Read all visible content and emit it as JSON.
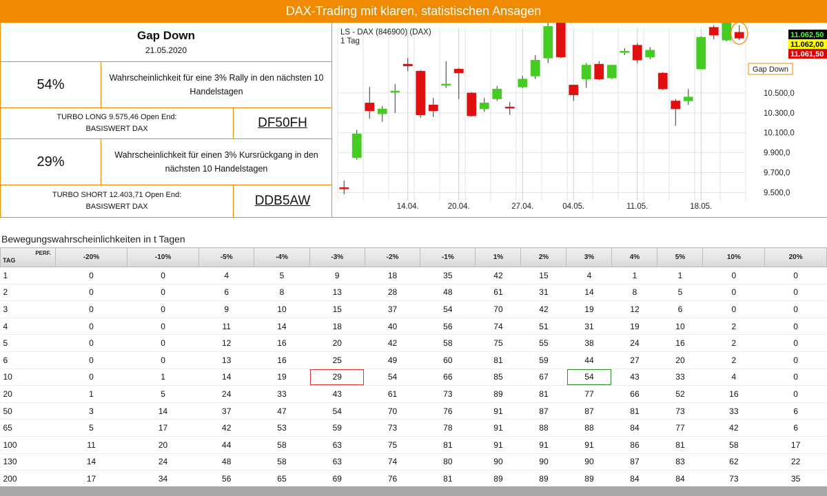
{
  "header": {
    "title": "DAX-Trading mit klaren, statistischen Ansagen"
  },
  "info": {
    "title": "Gap Down",
    "date": "21.05.2020",
    "long": {
      "pct": "54%",
      "desc": "Wahrscheinlichkeit für eine 3% Rally in den nächsten 10 Handelstagen",
      "product_line1": "TURBO LONG 9.575,46 Open End:",
      "product_line2": "BASISWERT DAX",
      "code": "DF50FH"
    },
    "short": {
      "pct": "29%",
      "desc": "Wahrscheinlichkeit für einen 3% Kursrückgang in den nächsten 10 Handelstagen",
      "product_line1": "TURBO SHORT 12.403,71 Open End:",
      "product_line2": "BASISWERT DAX",
      "code": "DDB5AW"
    }
  },
  "chart_data": {
    "type": "candlestick",
    "title": "LS - DAX (846900) (DAX)",
    "subtitle": "1 Tag",
    "y_ticks": [
      "9.500,0",
      "9.700,0",
      "9.900,0",
      "10.100,0",
      "10.300,0",
      "10.500,0"
    ],
    "x_ticks": [
      "14.04.",
      "20.04.",
      "27.04.",
      "04.05.",
      "11.05.",
      "18.05."
    ],
    "ylim": [
      9420,
      11150
    ],
    "candles": [
      {
        "o": 9550,
        "h": 9620,
        "l": 9480,
        "c": 9545
      },
      {
        "o": 9850,
        "h": 10130,
        "l": 9830,
        "c": 10090
      },
      {
        "o": 10400,
        "h": 10560,
        "l": 10240,
        "c": 10320
      },
      {
        "o": 10290,
        "h": 10370,
        "l": 10210,
        "c": 10340
      },
      {
        "o": 10510,
        "h": 10590,
        "l": 10300,
        "c": 10520
      },
      {
        "o": 10790,
        "h": 10850,
        "l": 10720,
        "c": 10770
      },
      {
        "o": 10720,
        "h": 10730,
        "l": 10250,
        "c": 10280
      },
      {
        "o": 10380,
        "h": 10450,
        "l": 10260,
        "c": 10320
      },
      {
        "o": 10590,
        "h": 10820,
        "l": 10550,
        "c": 10590
      },
      {
        "o": 10740,
        "h": 10750,
        "l": 10440,
        "c": 10700
      },
      {
        "o": 10500,
        "h": 10510,
        "l": 10260,
        "c": 10270
      },
      {
        "o": 10340,
        "h": 10450,
        "l": 10310,
        "c": 10400
      },
      {
        "o": 10440,
        "h": 10570,
        "l": 10420,
        "c": 10540
      },
      {
        "o": 10360,
        "h": 10410,
        "l": 10280,
        "c": 10350
      },
      {
        "o": 10560,
        "h": 10670,
        "l": 10550,
        "c": 10640
      },
      {
        "o": 10670,
        "h": 10880,
        "l": 10640,
        "c": 10830
      },
      {
        "o": 10850,
        "h": 11210,
        "l": 10800,
        "c": 11170
      },
      {
        "o": 11210,
        "h": 11240,
        "l": 10850,
        "c": 10860
      },
      {
        "o": 10580,
        "h": 10580,
        "l": 10420,
        "c": 10480
      },
      {
        "o": 10640,
        "h": 10800,
        "l": 10550,
        "c": 10780
      },
      {
        "o": 10790,
        "h": 10820,
        "l": 10630,
        "c": 10640
      },
      {
        "o": 10650,
        "h": 10780,
        "l": 10640,
        "c": 10780
      },
      {
        "o": 10910,
        "h": 10950,
        "l": 10880,
        "c": 10920
      },
      {
        "o": 10980,
        "h": 11000,
        "l": 10800,
        "c": 10830
      },
      {
        "o": 10860,
        "h": 10960,
        "l": 10840,
        "c": 10930
      },
      {
        "o": 10700,
        "h": 10710,
        "l": 10530,
        "c": 10540
      },
      {
        "o": 10420,
        "h": 10440,
        "l": 10170,
        "c": 10340
      },
      {
        "o": 10420,
        "h": 10540,
        "l": 10380,
        "c": 10460
      },
      {
        "o": 10740,
        "h": 11070,
        "l": 10740,
        "c": 11060
      },
      {
        "o": 11160,
        "h": 11180,
        "l": 11040,
        "c": 11080
      },
      {
        "o": 11030,
        "h": 11210,
        "l": 11020,
        "c": 11210
      },
      {
        "o": 11110,
        "h": 11180,
        "l": 11030,
        "c": 11050
      }
    ],
    "price_labels": [
      {
        "text": "11.062,50",
        "kind": "last",
        "bg": "#000000",
        "color": "#44ff44"
      },
      {
        "text": "11.062,00",
        "kind": "bid",
        "bg": "#ffff00",
        "color": "#000000"
      },
      {
        "text": "11.061,50",
        "kind": "ask",
        "bg": "#e00000",
        "color": "#ffffff"
      }
    ],
    "annotation": "Gap Down",
    "colors": {
      "up": "#44cc22",
      "down": "#e01010",
      "annotation": "#f08a00",
      "grid": "#e2e2e2"
    }
  },
  "table": {
    "title": "Bewegungswahrscheinlichkeiten in t Tagen",
    "corner_top": "PERF.",
    "corner_bottom": "TAG",
    "columns": [
      "-20%",
      "-10%",
      "-5%",
      "-4%",
      "-3%",
      "-2%",
      "-1%",
      "1%",
      "2%",
      "3%",
      "4%",
      "5%",
      "10%",
      "20%"
    ],
    "rows": [
      {
        "tag": "1",
        "values": [
          "0",
          "0",
          "4",
          "5",
          "9",
          "18",
          "35",
          "42",
          "15",
          "4",
          "1",
          "1",
          "0",
          "0"
        ]
      },
      {
        "tag": "2",
        "values": [
          "0",
          "0",
          "6",
          "8",
          "13",
          "28",
          "48",
          "61",
          "31",
          "14",
          "8",
          "5",
          "0",
          "0"
        ]
      },
      {
        "tag": "3",
        "values": [
          "0",
          "0",
          "9",
          "10",
          "15",
          "37",
          "54",
          "70",
          "42",
          "19",
          "12",
          "6",
          "0",
          "0"
        ]
      },
      {
        "tag": "4",
        "values": [
          "0",
          "0",
          "11",
          "14",
          "18",
          "40",
          "56",
          "74",
          "51",
          "31",
          "19",
          "10",
          "2",
          "0"
        ]
      },
      {
        "tag": "5",
        "values": [
          "0",
          "0",
          "12",
          "16",
          "20",
          "42",
          "58",
          "75",
          "55",
          "38",
          "24",
          "16",
          "2",
          "0"
        ]
      },
      {
        "tag": "6",
        "values": [
          "0",
          "0",
          "13",
          "16",
          "25",
          "49",
          "60",
          "81",
          "59",
          "44",
          "27",
          "20",
          "2",
          "0"
        ]
      },
      {
        "tag": "10",
        "values": [
          "0",
          "1",
          "14",
          "19",
          "29",
          "54",
          "66",
          "85",
          "67",
          "54",
          "43",
          "33",
          "4",
          "0"
        ]
      },
      {
        "tag": "20",
        "values": [
          "1",
          "5",
          "24",
          "33",
          "43",
          "61",
          "73",
          "89",
          "81",
          "77",
          "66",
          "52",
          "16",
          "0"
        ]
      },
      {
        "tag": "50",
        "values": [
          "3",
          "14",
          "37",
          "47",
          "54",
          "70",
          "76",
          "91",
          "87",
          "87",
          "81",
          "73",
          "33",
          "6"
        ]
      },
      {
        "tag": "65",
        "values": [
          "5",
          "17",
          "42",
          "53",
          "59",
          "73",
          "78",
          "91",
          "88",
          "88",
          "84",
          "77",
          "42",
          "6"
        ]
      },
      {
        "tag": "100",
        "values": [
          "11",
          "20",
          "44",
          "58",
          "63",
          "75",
          "81",
          "91",
          "91",
          "91",
          "86",
          "81",
          "58",
          "17"
        ]
      },
      {
        "tag": "130",
        "values": [
          "14",
          "24",
          "48",
          "58",
          "63",
          "74",
          "80",
          "90",
          "90",
          "90",
          "87",
          "83",
          "62",
          "22"
        ]
      },
      {
        "tag": "200",
        "values": [
          "17",
          "34",
          "56",
          "65",
          "69",
          "76",
          "81",
          "89",
          "89",
          "89",
          "84",
          "84",
          "73",
          "35"
        ]
      }
    ],
    "highlights": [
      {
        "row": 6,
        "col": 4,
        "color": "red"
      },
      {
        "row": 6,
        "col": 9,
        "color": "green"
      }
    ]
  }
}
